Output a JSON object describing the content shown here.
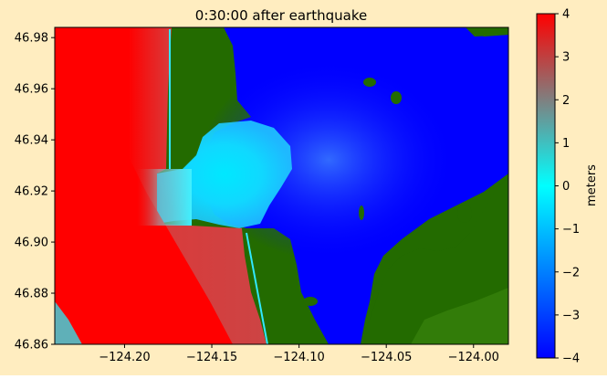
{
  "background_color": "#ffedc0",
  "chart_data": {
    "type": "heatmap",
    "title": "0:30:00 after earthquake",
    "xlabel": "",
    "ylabel": "",
    "xlim": [
      -124.24,
      -123.98
    ],
    "ylim": [
      46.86,
      46.984
    ],
    "x_ticks": [
      -124.2,
      -124.15,
      -124.1,
      -124.05,
      -124.0
    ],
    "x_tick_labels": [
      "−124.20",
      "−124.15",
      "−124.10",
      "−124.05",
      "−124.00"
    ],
    "y_ticks": [
      46.86,
      46.88,
      46.9,
      46.92,
      46.94,
      46.96,
      46.98
    ],
    "y_tick_labels": [
      "46.86",
      "46.88",
      "46.90",
      "46.92",
      "46.94",
      "46.96",
      "46.98"
    ],
    "colorbar": {
      "label": "meters",
      "range": [
        -4,
        4
      ],
      "ticks": [
        -4,
        -3,
        -2,
        -1,
        0,
        1,
        2,
        3,
        4
      ],
      "tick_labels": [
        "−4",
        "−3",
        "−2",
        "−1",
        "0",
        "1",
        "2",
        "3",
        "4"
      ],
      "colormap": [
        "#0000ff",
        "#00ffff",
        "#ff0000"
      ]
    },
    "land_color": "#236b00",
    "grid": false,
    "regions": [
      {
        "name": "ocean-wave",
        "description_value": "surface elevation 2 to 4 m offshore (west)"
      },
      {
        "name": "bay",
        "description_value": "surface elevation about -4 m in bay interior"
      },
      {
        "name": "bay-entrance",
        "description_value": "surface elevation about 0 to 1 m near inlet"
      }
    ]
  }
}
